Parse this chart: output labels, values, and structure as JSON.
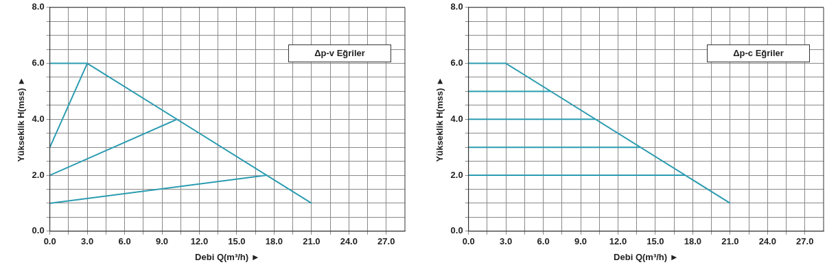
{
  "chart_data": [
    {
      "type": "line",
      "xlabel": "Debi Q(m³/h) ►",
      "ylabel": "Yükseklik H(mss) ►",
      "annotations": [
        "Δp-v Eğriler"
      ],
      "grid": true,
      "marker": "none",
      "xlim": [
        0,
        28.5
      ],
      "xticks": [
        {
          "value": 0,
          "label": "0.0"
        },
        {
          "value": 1.5,
          "label": null
        },
        {
          "value": 3,
          "label": "3.0"
        },
        {
          "value": 4.5,
          "label": null
        },
        {
          "value": 6,
          "label": "6.0"
        },
        {
          "value": 7.5,
          "label": null
        },
        {
          "value": 9,
          "label": "9.0"
        },
        {
          "value": 10.5,
          "label": null
        },
        {
          "value": 12,
          "label": "12.0"
        },
        {
          "value": 13.5,
          "label": null
        },
        {
          "value": 15,
          "label": "15.0"
        },
        {
          "value": 16.5,
          "label": null
        },
        {
          "value": 18,
          "label": "18.0"
        },
        {
          "value": 19.5,
          "label": null
        },
        {
          "value": 21,
          "label": "21.0"
        },
        {
          "value": 22.5,
          "label": null
        },
        {
          "value": 24,
          "label": "24.0"
        },
        {
          "value": 25.5,
          "label": null
        },
        {
          "value": 27,
          "label": "27.0"
        }
      ],
      "ylim": [
        0,
        8
      ],
      "yticks": [
        {
          "value": 0,
          "label": "0.0"
        },
        {
          "value": 0.5,
          "label": null
        },
        {
          "value": 1,
          "label": null
        },
        {
          "value": 1.5,
          "label": null
        },
        {
          "value": 2,
          "label": "2.0"
        },
        {
          "value": 2.5,
          "label": null
        },
        {
          "value": 3,
          "label": null
        },
        {
          "value": 3.5,
          "label": null
        },
        {
          "value": 4,
          "label": "4.0"
        },
        {
          "value": 4.5,
          "label": null
        },
        {
          "value": 5,
          "label": null
        },
        {
          "value": 5.5,
          "label": null
        },
        {
          "value": 6,
          "label": "6.0"
        },
        {
          "value": 6.5,
          "label": null
        },
        {
          "value": 7,
          "label": null
        },
        {
          "value": 7.5,
          "label": null
        },
        {
          "value": 8,
          "label": "8.0"
        }
      ],
      "series": [
        {
          "color": "#2a9bb0",
          "x": [
            0,
            3,
            21
          ],
          "values": [
            6,
            6,
            1
          ]
        },
        {
          "color": "#2a9bb0",
          "x": [
            0,
            3
          ],
          "values": [
            3,
            6
          ]
        },
        {
          "color": "#2a9bb0",
          "x": [
            0,
            10.2
          ],
          "values": [
            2,
            4
          ]
        },
        {
          "color": "#2a9bb0",
          "x": [
            0,
            17.4
          ],
          "values": [
            1,
            2
          ]
        }
      ]
    },
    {
      "type": "line",
      "xlabel": "Debi Q(m³/h) ►",
      "ylabel": "Yükseklik H(mss) ►",
      "annotations": [
        "Δp-c Eğriler"
      ],
      "grid": true,
      "marker": "none",
      "xlim": [
        0,
        28.5
      ],
      "xticks": [
        {
          "value": 0,
          "label": "0.0"
        },
        {
          "value": 1.5,
          "label": null
        },
        {
          "value": 3,
          "label": "3.0"
        },
        {
          "value": 4.5,
          "label": null
        },
        {
          "value": 6,
          "label": "6.0"
        },
        {
          "value": 7.5,
          "label": null
        },
        {
          "value": 9,
          "label": "9.0"
        },
        {
          "value": 10.5,
          "label": null
        },
        {
          "value": 12,
          "label": "12.0"
        },
        {
          "value": 13.5,
          "label": null
        },
        {
          "value": 15,
          "label": "15.0"
        },
        {
          "value": 16.5,
          "label": null
        },
        {
          "value": 18,
          "label": "18.0"
        },
        {
          "value": 19.5,
          "label": null
        },
        {
          "value": 21,
          "label": "21.0"
        },
        {
          "value": 22.5,
          "label": null
        },
        {
          "value": 24,
          "label": "24.0"
        },
        {
          "value": 25.5,
          "label": null
        },
        {
          "value": 27,
          "label": "27.0"
        }
      ],
      "ylim": [
        0,
        8
      ],
      "yticks": [
        {
          "value": 0,
          "label": "0.0"
        },
        {
          "value": 0.5,
          "label": null
        },
        {
          "value": 1,
          "label": null
        },
        {
          "value": 1.5,
          "label": null
        },
        {
          "value": 2,
          "label": "2.0"
        },
        {
          "value": 2.5,
          "label": null
        },
        {
          "value": 3,
          "label": null
        },
        {
          "value": 3.5,
          "label": null
        },
        {
          "value": 4,
          "label": "4.0"
        },
        {
          "value": 4.5,
          "label": null
        },
        {
          "value": 5,
          "label": null
        },
        {
          "value": 5.5,
          "label": null
        },
        {
          "value": 6,
          "label": "6.0"
        },
        {
          "value": 6.5,
          "label": null
        },
        {
          "value": 7,
          "label": null
        },
        {
          "value": 7.5,
          "label": null
        },
        {
          "value": 8,
          "label": "8.0"
        }
      ],
      "series": [
        {
          "color": "#2a9bb0",
          "x": [
            0,
            3,
            21
          ],
          "values": [
            6,
            6,
            1
          ]
        },
        {
          "color": "#2a9bb0",
          "x": [
            0,
            6.6
          ],
          "values": [
            5,
            5
          ]
        },
        {
          "color": "#2a9bb0",
          "x": [
            0,
            10.2
          ],
          "values": [
            4,
            4
          ]
        },
        {
          "color": "#2a9bb0",
          "x": [
            0,
            13.8
          ],
          "values": [
            3,
            3
          ]
        },
        {
          "color": "#2a9bb0",
          "x": [
            0,
            17.4
          ],
          "values": [
            2,
            2
          ]
        }
      ]
    }
  ]
}
